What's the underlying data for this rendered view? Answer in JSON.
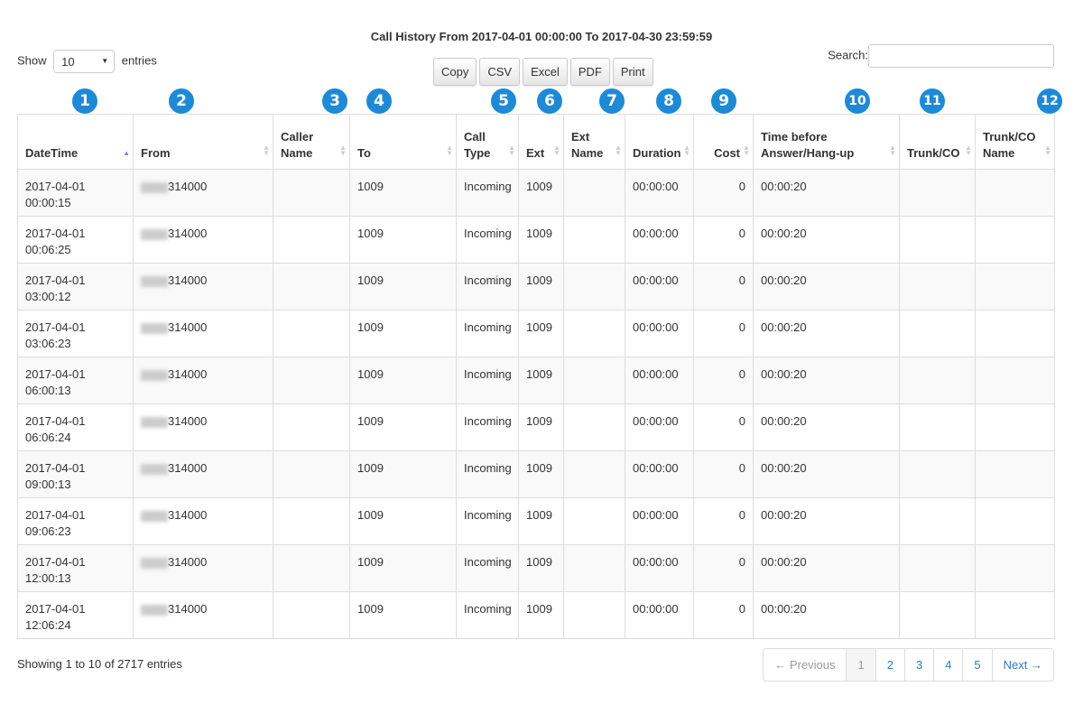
{
  "title": "Call History From 2017-04-01 00:00:00 To 2017-04-30 23:59:59",
  "length": {
    "show": "Show",
    "value": "10",
    "entries": "entries"
  },
  "buttons": [
    "Copy",
    "CSV",
    "Excel",
    "PDF",
    "Print"
  ],
  "search": {
    "label": "Search:",
    "value": ""
  },
  "columns": [
    "DateTime",
    "From",
    "Caller Name",
    "To",
    "Call Type",
    "Ext",
    "Ext Name",
    "Duration",
    "Cost",
    "Time before Answer/Hang-up",
    "Trunk/CO",
    "Trunk/CO Name"
  ],
  "badges": [
    "1",
    "2",
    "3",
    "4",
    "5",
    "6",
    "7",
    "8",
    "9",
    "10",
    "11",
    "12"
  ],
  "rows": [
    [
      "2017-04-01 00:00:15",
      "314000",
      "",
      "1009",
      "Incoming",
      "1009",
      "",
      "00:00:00",
      "0",
      "00:00:20",
      "",
      ""
    ],
    [
      "2017-04-01 00:06:25",
      "314000",
      "",
      "1009",
      "Incoming",
      "1009",
      "",
      "00:00:00",
      "0",
      "00:00:20",
      "",
      ""
    ],
    [
      "2017-04-01 03:00:12",
      "314000",
      "",
      "1009",
      "Incoming",
      "1009",
      "",
      "00:00:00",
      "0",
      "00:00:20",
      "",
      ""
    ],
    [
      "2017-04-01 03:06:23",
      "314000",
      "",
      "1009",
      "Incoming",
      "1009",
      "",
      "00:00:00",
      "0",
      "00:00:20",
      "",
      ""
    ],
    [
      "2017-04-01 06:00:13",
      "314000",
      "",
      "1009",
      "Incoming",
      "1009",
      "",
      "00:00:00",
      "0",
      "00:00:20",
      "",
      ""
    ],
    [
      "2017-04-01 06:06:24",
      "314000",
      "",
      "1009",
      "Incoming",
      "1009",
      "",
      "00:00:00",
      "0",
      "00:00:20",
      "",
      ""
    ],
    [
      "2017-04-01 09:00:13",
      "314000",
      "",
      "1009",
      "Incoming",
      "1009",
      "",
      "00:00:00",
      "0",
      "00:00:20",
      "",
      ""
    ],
    [
      "2017-04-01 09:06:23",
      "314000",
      "",
      "1009",
      "Incoming",
      "1009",
      "",
      "00:00:00",
      "0",
      "00:00:20",
      "",
      ""
    ],
    [
      "2017-04-01 12:00:13",
      "314000",
      "",
      "1009",
      "Incoming",
      "1009",
      "",
      "00:00:00",
      "0",
      "00:00:20",
      "",
      ""
    ],
    [
      "2017-04-01 12:06:24",
      "314000",
      "",
      "1009",
      "Incoming",
      "1009",
      "",
      "00:00:00",
      "0",
      "00:00:20",
      "",
      ""
    ]
  ],
  "info": "Showing 1 to 10 of 2717 entries",
  "pagination": [
    "← Previous",
    "1",
    "2",
    "3",
    "4",
    "5",
    "Next →"
  ],
  "accent": "#1e8ad6"
}
